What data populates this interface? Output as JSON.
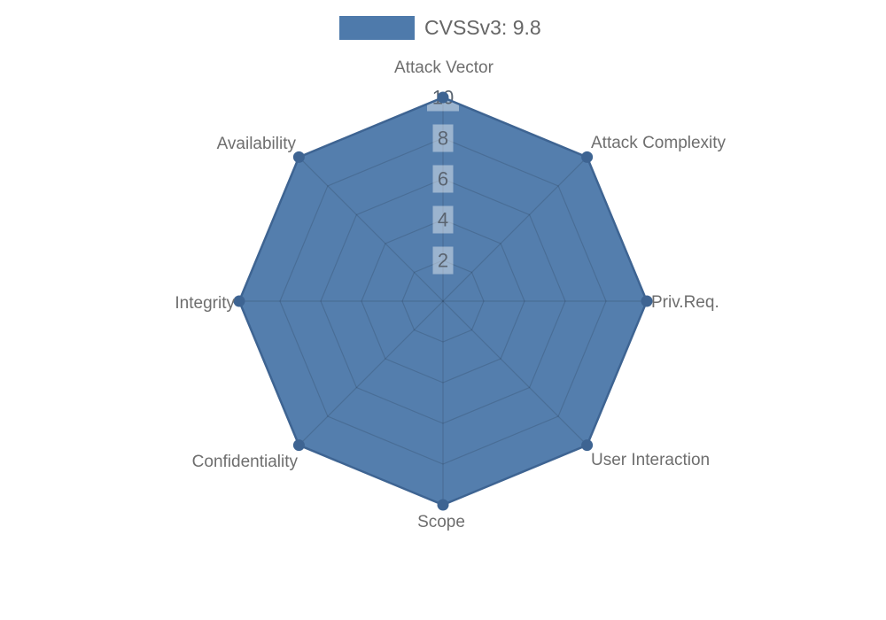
{
  "legend": {
    "label": "CVSSv3: 9.8",
    "swatch_color": "#4e7aab",
    "text_color": "#666666"
  },
  "chart_data": {
    "type": "radar",
    "title": "CVSSv3: 9.8",
    "categories": [
      "Attack Vector",
      "Attack Complexity",
      "Priv.Req.",
      "User Interaction",
      "Scope",
      "Confidentiality",
      "Integrity",
      "Availability"
    ],
    "series": [
      {
        "name": "CVSSv3: 9.8",
        "values": [
          10,
          10,
          10,
          10,
          10,
          10,
          10,
          10
        ]
      }
    ],
    "ticks": [
      "2",
      "4",
      "6",
      "8",
      "10"
    ],
    "tick_values": [
      2,
      4,
      6,
      8,
      10
    ],
    "rmax": 10,
    "grid": "on",
    "legend_position": "top-center",
    "colors": {
      "fill": "#4b77a9",
      "fill_opacity": "0.95",
      "line": "#3e6492",
      "marker": "#3e6492",
      "grid_line": "rgba(0,0,0,0.13)",
      "tick_text": "#5a6470",
      "tick_backdrop": "rgba(255,255,255,0.42)",
      "axis_label_color": "#6e6e6e"
    }
  }
}
